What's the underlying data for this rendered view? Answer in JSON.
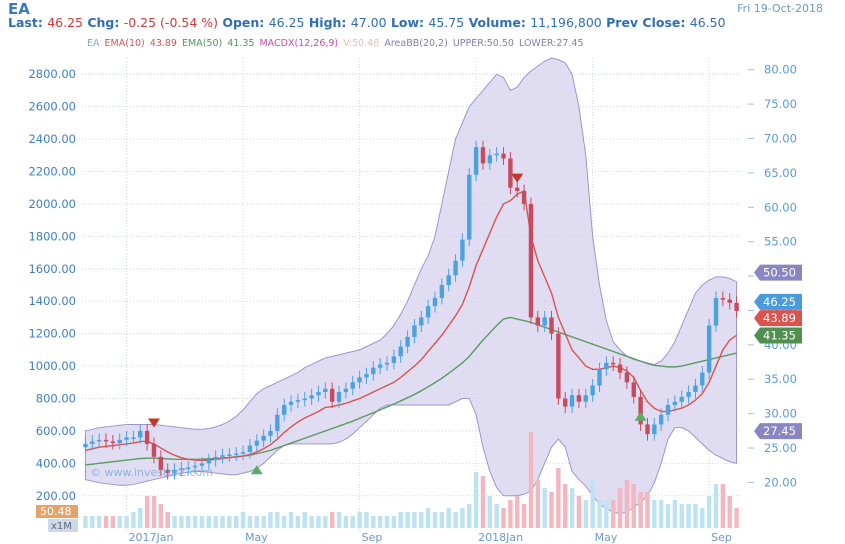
{
  "header": {
    "symbol": "EA",
    "date": "Fri 19-Oct-2018",
    "last_label": "Last:",
    "last": "46.25",
    "chg_label": "Chg:",
    "chg": "-0.25 (-0.54 %)",
    "open_label": "Open:",
    "open": "46.25",
    "high_label": "High:",
    "high": "47.00",
    "low_label": "Low:",
    "low": "45.75",
    "volume_label": "Volume:",
    "volume": "11,196,800",
    "prev_label": "Prev Close:",
    "prev": "46.50"
  },
  "legend": [
    {
      "text": "EA",
      "color": "#7aa7d6"
    },
    {
      "text": "EMA(10)",
      "color": "#d9534f"
    },
    {
      "text": "43.89",
      "color": "#d9534f"
    },
    {
      "text": "EMA(50)",
      "color": "#4f9a5a"
    },
    {
      "text": "41.35",
      "color": "#4f9a5a"
    },
    {
      "text": "MACDX(12,26,9)",
      "color": "#c84ab0"
    },
    {
      "text": "V:50.48",
      "color": "#f0b8b8"
    },
    {
      "text": "AreaBB(20,2)",
      "color": "#7f7fb3"
    },
    {
      "text": "UPPER:50.50",
      "color": "#7f7fb3"
    },
    {
      "text": "LOWER:27.45",
      "color": "#7f7fb3"
    }
  ],
  "watermark": "© www.investorZ.com",
  "colors": {
    "up": "#4aa3e0",
    "down": "#c94a5e",
    "ema10": "#d9534f",
    "ema50": "#5b9a62",
    "band_fill": "#d8d4f0",
    "band_stroke": "#9a96cc",
    "vol_up": "#bde2f2",
    "vol_down": "#f4b6bf"
  },
  "chart_data": {
    "type": "candlestick",
    "left_axis": {
      "ticks": [
        "200.00",
        "400.00",
        "600.00",
        "800.00",
        "1000.00",
        "1200.00",
        "1400.00",
        "1600.00",
        "1800.00",
        "2000.00",
        "2200.00",
        "2400.00",
        "2600.00",
        "2800.00"
      ],
      "range": [
        100,
        2900
      ]
    },
    "right_axis": {
      "ticks": [
        "20.00",
        "25.00",
        "30.00",
        "35.00",
        "40.00",
        "45.00",
        "50.00",
        "55.00",
        "60.00",
        "65.00",
        "70.00",
        "75.00",
        "80.00"
      ],
      "range": [
        15.7,
        81.7
      ]
    },
    "x_labels": [
      "2017Jan",
      "May",
      "Sep",
      "2018Jan",
      "May",
      "Sep"
    ],
    "x_label_weeks": [
      6,
      23,
      40,
      57,
      74,
      91
    ],
    "weeks": 96,
    "close": [
      520,
      535,
      545,
      535,
      525,
      545,
      560,
      560,
      600,
      520,
      440,
      360,
      340,
      360,
      370,
      375,
      385,
      400,
      420,
      440,
      450,
      455,
      460,
      470,
      510,
      540,
      570,
      600,
      700,
      760,
      780,
      790,
      800,
      820,
      840,
      860,
      780,
      840,
      860,
      900,
      930,
      950,
      990,
      1010,
      1020,
      1060,
      1120,
      1180,
      1250,
      1300,
      1370,
      1420,
      1500,
      1560,
      1650,
      1780,
      2180,
      2350,
      2250,
      2300,
      2310,
      2280,
      2100,
      2080,
      2000,
      1300,
      1250,
      1300,
      1200,
      800,
      750,
      820,
      780,
      820,
      880,
      980,
      1020,
      1010,
      960,
      900,
      810,
      640,
      580,
      640,
      700,
      760,
      780,
      810,
      840,
      880,
      960,
      1250,
      1420,
      1410,
      1390,
      1340
    ],
    "open": [
      500,
      520,
      535,
      545,
      535,
      525,
      545,
      560,
      560,
      600,
      520,
      440,
      360,
      340,
      360,
      370,
      375,
      385,
      400,
      420,
      440,
      450,
      455,
      460,
      470,
      510,
      540,
      570,
      600,
      700,
      760,
      780,
      790,
      800,
      820,
      840,
      860,
      780,
      840,
      860,
      900,
      930,
      950,
      990,
      1010,
      1020,
      1060,
      1120,
      1180,
      1250,
      1300,
      1370,
      1420,
      1500,
      1560,
      1650,
      1780,
      2180,
      2350,
      2250,
      2300,
      2310,
      2280,
      2100,
      2080,
      2000,
      1300,
      1250,
      1300,
      1200,
      800,
      750,
      820,
      780,
      820,
      880,
      980,
      1020,
      1010,
      960,
      900,
      810,
      640,
      580,
      640,
      700,
      760,
      780,
      810,
      840,
      880,
      960,
      1250,
      1420,
      1410,
      1390
    ],
    "ema10": [
      480,
      490,
      500,
      505,
      510,
      515,
      520,
      525,
      535,
      535,
      520,
      495,
      470,
      450,
      435,
      425,
      420,
      418,
      420,
      425,
      430,
      435,
      440,
      445,
      455,
      470,
      490,
      515,
      550,
      590,
      625,
      655,
      680,
      700,
      720,
      745,
      750,
      760,
      770,
      785,
      800,
      820,
      840,
      860,
      880,
      900,
      930,
      965,
      1000,
      1040,
      1090,
      1140,
      1190,
      1250,
      1310,
      1380,
      1490,
      1620,
      1720,
      1820,
      1920,
      2000,
      2020,
      2060,
      2080,
      1800,
      1650,
      1550,
      1450,
      1300,
      1200,
      1100,
      1050,
      1000,
      980,
      980,
      990,
      1000,
      990,
      970,
      930,
      850,
      780,
      740,
      720,
      720,
      730,
      740,
      760,
      790,
      830,
      900,
      1000,
      1100,
      1160,
      1190
    ],
    "ema50": [
      390,
      395,
      400,
      405,
      410,
      415,
      420,
      425,
      430,
      432,
      432,
      430,
      428,
      426,
      425,
      425,
      425,
      426,
      428,
      430,
      433,
      436,
      440,
      445,
      450,
      460,
      470,
      480,
      495,
      510,
      525,
      540,
      555,
      570,
      585,
      600,
      615,
      630,
      645,
      660,
      678,
      695,
      712,
      730,
      748,
      766,
      785,
      805,
      825,
      848,
      872,
      898,
      925,
      955,
      987,
      1020,
      1060,
      1110,
      1160,
      1205,
      1250,
      1290,
      1300,
      1290,
      1280,
      1270,
      1255,
      1240,
      1225,
      1210,
      1195,
      1180,
      1165,
      1150,
      1135,
      1120,
      1105,
      1090,
      1075,
      1060,
      1045,
      1030,
      1015,
      1005,
      1000,
      995,
      995,
      1000,
      1010,
      1020,
      1030,
      1040,
      1050,
      1060,
      1070,
      1080
    ],
    "bb_upper": [
      600,
      610,
      620,
      625,
      630,
      635,
      640,
      640,
      640,
      640,
      640,
      635,
      630,
      625,
      620,
      615,
      610,
      610,
      615,
      625,
      640,
      660,
      690,
      730,
      780,
      830,
      860,
      880,
      900,
      920,
      940,
      960,
      990,
      1010,
      1030,
      1050,
      1060,
      1070,
      1080,
      1090,
      1100,
      1120,
      1140,
      1160,
      1200,
      1250,
      1320,
      1400,
      1500,
      1600,
      1680,
      1800,
      2000,
      2200,
      2400,
      2500,
      2600,
      2650,
      2700,
      2750,
      2800,
      2780,
      2700,
      2720,
      2780,
      2820,
      2850,
      2880,
      2900,
      2890,
      2870,
      2800,
      2600,
      2300,
      1800,
      1500,
      1280,
      1150,
      1100,
      1060,
      1040,
      1030,
      1020,
      1010,
      1030,
      1080,
      1150,
      1250,
      1350,
      1450,
      1500,
      1530,
      1550,
      1550,
      1540,
      1520
    ],
    "bb_lower": [
      300,
      290,
      280,
      275,
      270,
      265,
      265,
      270,
      280,
      290,
      300,
      310,
      320,
      330,
      340,
      345,
      350,
      350,
      345,
      340,
      335,
      330,
      330,
      340,
      350,
      370,
      400,
      440,
      480,
      510,
      520,
      520,
      520,
      520,
      520,
      520,
      520,
      530,
      550,
      580,
      620,
      660,
      700,
      740,
      760,
      760,
      760,
      760,
      760,
      760,
      760,
      760,
      760,
      760,
      780,
      800,
      800,
      700,
      500,
      350,
      250,
      200,
      200,
      200,
      210,
      230,
      300,
      400,
      500,
      550,
      500,
      350,
      300,
      260,
      200,
      150,
      120,
      100,
      90,
      100,
      130,
      160,
      200,
      280,
      400,
      550,
      620,
      620,
      600,
      560,
      520,
      480,
      450,
      430,
      410,
      400
    ],
    "volume": [
      3,
      3,
      3,
      3,
      3,
      3,
      3,
      4,
      5,
      8,
      8,
      6,
      4,
      3,
      3,
      3,
      3,
      3,
      3,
      3,
      3,
      3,
      3,
      4,
      3,
      3,
      3,
      4,
      4,
      3,
      4,
      3,
      4,
      3,
      3,
      3,
      4,
      4,
      3,
      3,
      4,
      4,
      3,
      3,
      3,
      3,
      4,
      4,
      4,
      4,
      5,
      4,
      4,
      5,
      4,
      5,
      6,
      14,
      13,
      8,
      6,
      5,
      7,
      8,
      6,
      24,
      12,
      10,
      9,
      15,
      11,
      10,
      8,
      7,
      12,
      7,
      7,
      7,
      10,
      12,
      11,
      9,
      9,
      7,
      7,
      6,
      7,
      6,
      6,
      6,
      5,
      8,
      11,
      11,
      8,
      5
    ],
    "markers": [
      {
        "week": 10,
        "price": 640,
        "type": "down",
        "color": "#c0392b"
      },
      {
        "week": 25,
        "price": 370,
        "type": "up",
        "color": "#5bab62"
      },
      {
        "week": 63,
        "price": 2150,
        "type": "down",
        "color": "#c0392b"
      },
      {
        "week": 81,
        "price": 700,
        "type": "up",
        "color": "#5bab62"
      }
    ],
    "labels_right": [
      {
        "text": "50.50",
        "value": 50.5,
        "bg": "#8a86c4"
      },
      {
        "text": "46.25",
        "value": 46.25,
        "bg": "#4a9bdb"
      },
      {
        "text": "43.89",
        "value": 43.89,
        "bg": "#d9534f"
      },
      {
        "text": "41.35",
        "value": 41.35,
        "bg": "#4f8f4f"
      },
      {
        "text": "27.45",
        "value": 27.45,
        "bg": "#8a86c4"
      }
    ],
    "volume_label": "50.48",
    "volume_unit": "x1M"
  }
}
